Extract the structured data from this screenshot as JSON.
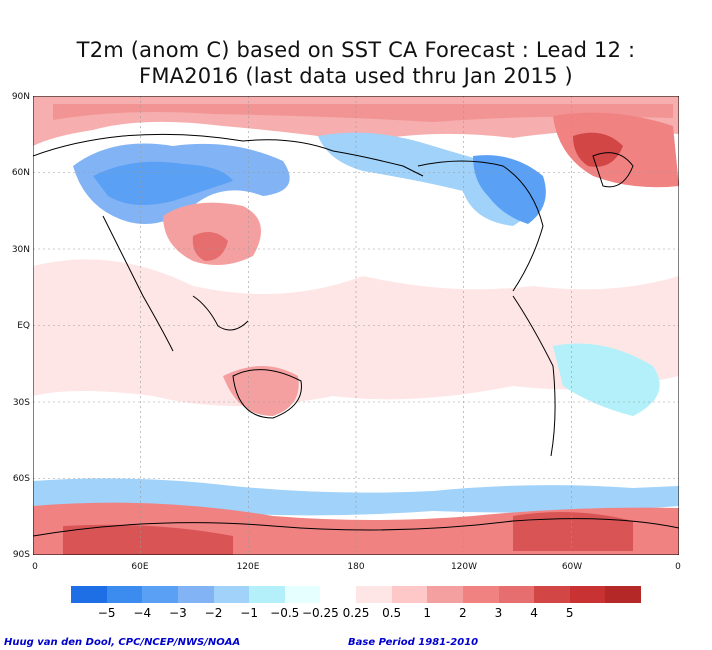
{
  "title_line1": "T2m (anom C) based on SST CA Forecast : Lead 12 :",
  "title_line2": "FMA2016 (last data used thru Jan 2015 )",
  "lat_labels": [
    "90N",
    "60N",
    "30N",
    "EQ",
    "30S",
    "60S",
    "90S"
  ],
  "lon_labels": [
    "0",
    "60E",
    "120E",
    "180",
    "120W",
    "60W",
    "0"
  ],
  "legend": {
    "colors": [
      "#1e6fe6",
      "#3c8cf0",
      "#5aa0f5",
      "#82b4f5",
      "#a0d2fa",
      "#b4f0fa",
      "#e6ffff",
      "#ffffff",
      "#ffe6e6",
      "#ffc8c8",
      "#f5a0a0",
      "#f08282",
      "#e66e6e",
      "#d24646",
      "#c83232",
      "#b42828"
    ],
    "labels": [
      "−5",
      "−4",
      "−3",
      "−2",
      "−1",
      "−0.5",
      "−0.25",
      "0.25",
      "0.5",
      "1",
      "2",
      "3",
      "4",
      "5"
    ]
  },
  "credit_left": "Huug van den Dool, CPC/NCEP/NWS/NOAA",
  "credit_right": "Base Period 1981-2010"
}
